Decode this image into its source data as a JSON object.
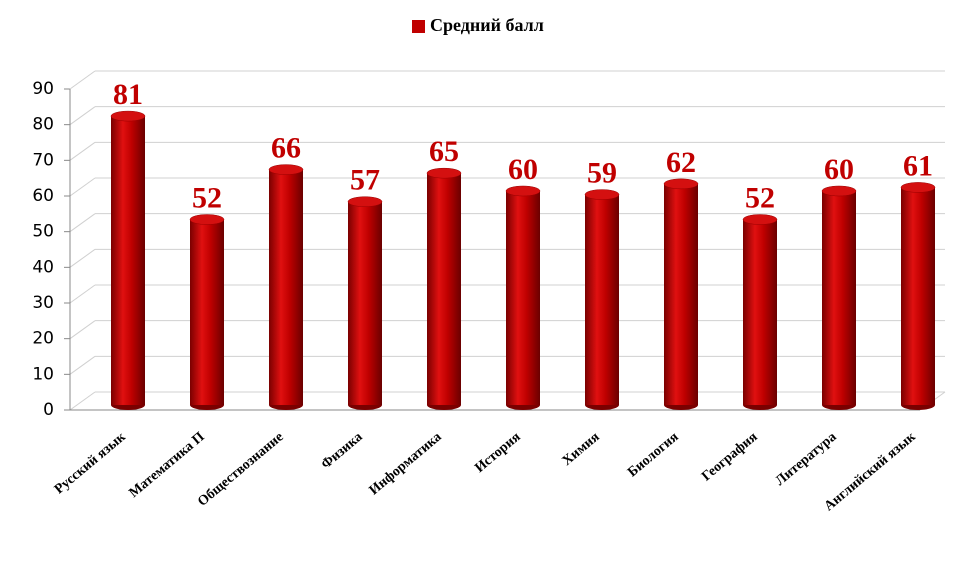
{
  "chart_data": {
    "type": "bar",
    "legend": "Средний балл",
    "categories": [
      "Русский язык",
      "Математика П",
      "Обществознание",
      "Физика",
      "Информатика",
      "История",
      "Химия",
      "Биология",
      "География",
      "Литература",
      "Английский язык"
    ],
    "series": [
      {
        "name": "Средний балл",
        "color": "#c00000",
        "values": [
          81,
          52,
          66,
          57,
          65,
          60,
          59,
          62,
          52,
          60,
          61
        ]
      }
    ],
    "ylim": [
      0,
      90
    ],
    "yticks": [
      0,
      10,
      20,
      30,
      40,
      50,
      60,
      70,
      80,
      90
    ],
    "grid": true,
    "legend_position": "top"
  }
}
